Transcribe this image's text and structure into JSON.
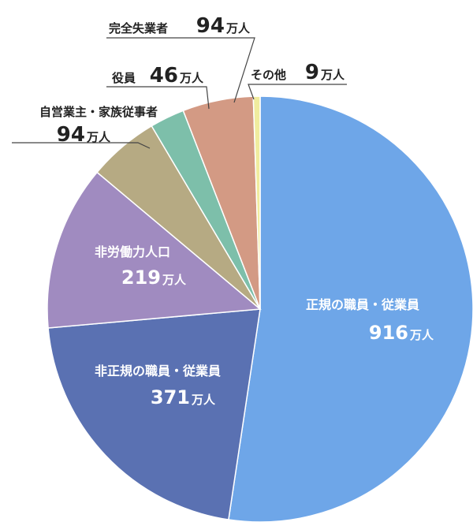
{
  "chart_data": {
    "type": "pie",
    "unit": "万人",
    "colors": {
      "regular": "#6EA6E8",
      "non_regular": "#5A71B2",
      "not_in_labor_force": "#A08BC0",
      "self_employed": "#B6AA83",
      "executive": "#7DBFAA",
      "unemployed": "#D39A84",
      "other": "#F0EC9E"
    },
    "slices": [
      {
        "key": "regular",
        "label": "正規の職員・従業員",
        "value": 916,
        "value_text": "916",
        "placement": "inside"
      },
      {
        "key": "non_regular",
        "label": "非正規の職員・従業員",
        "value": 371,
        "value_text": "371",
        "placement": "inside"
      },
      {
        "key": "not_in_labor_force",
        "label": "非労働力人口",
        "value": 219,
        "value_text": "219",
        "placement": "inside"
      },
      {
        "key": "self_employed",
        "label": "自営業主・家族従事者",
        "value": 94,
        "value_text": "94",
        "placement": "outside"
      },
      {
        "key": "executive",
        "label": "役員",
        "value": 46,
        "value_text": "46",
        "placement": "outside"
      },
      {
        "key": "unemployed",
        "label": "完全失業者",
        "value": 94,
        "value_text": "94",
        "placement": "outside"
      },
      {
        "key": "other",
        "label": "その他",
        "value": 9,
        "value_text": "9",
        "placement": "outside"
      }
    ]
  }
}
